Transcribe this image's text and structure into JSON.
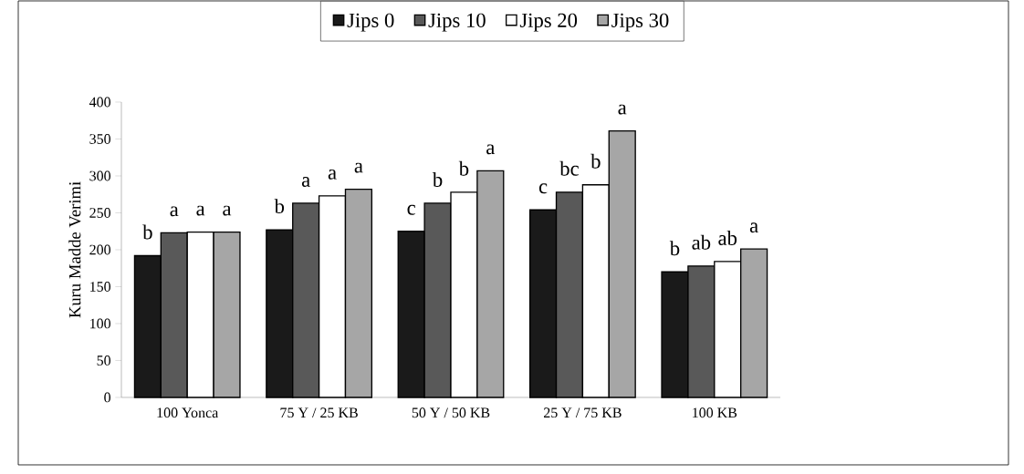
{
  "chart_data": {
    "type": "bar",
    "ylabel": "Kuru Madde Verimi",
    "categories": [
      "100 Yonca",
      "75 Y / 25 KB",
      "50 Y / 50 KB",
      "25 Y / 75 KB",
      "100 KB"
    ],
    "series": [
      {
        "name": "Jips 0",
        "color": "#1a1a1a",
        "values": [
          192,
          227,
          225,
          254,
          170
        ],
        "value_labels": [
          "b",
          "b",
          "c",
          "c",
          "b"
        ]
      },
      {
        "name": "Jips 10",
        "color": "#595959",
        "values": [
          223,
          263,
          263,
          278,
          178
        ],
        "value_labels": [
          "a",
          "a",
          "b",
          "bc",
          "ab"
        ]
      },
      {
        "name": "Jips 20",
        "color": "#ffffff",
        "values": [
          224,
          273,
          278,
          288,
          184
        ],
        "value_labels": [
          "a",
          "a",
          "b",
          "b",
          "ab"
        ]
      },
      {
        "name": "Jips 30",
        "color": "#a6a6a6",
        "values": [
          224,
          282,
          307,
          361,
          201
        ],
        "value_labels": [
          "a",
          "a",
          "a",
          "a",
          "a"
        ]
      }
    ],
    "ylim": [
      0,
      400
    ],
    "yticks": [
      0,
      50,
      100,
      150,
      200,
      250,
      300,
      350,
      400
    ],
    "legend": "top"
  }
}
